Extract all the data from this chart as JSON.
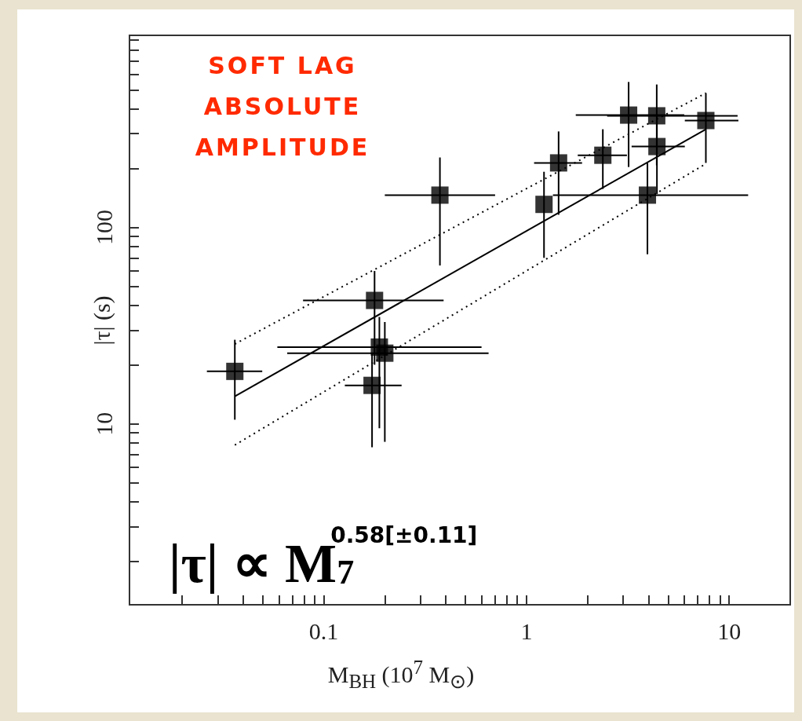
{
  "chart_data": {
    "type": "scatter",
    "xlabel": "M$_{BH}$ (10$^{7}$ M$_{⊙}$)",
    "ylabel": "|τ| (s)",
    "log": "xy",
    "xlim": [
      0.011,
      20
    ],
    "ylim": [
      1.2,
      950
    ],
    "xticks": [
      {
        "value": 0.02,
        "label": null
      },
      {
        "value": 0.03,
        "label": null
      },
      {
        "value": 0.04,
        "label": null
      },
      {
        "value": 0.05,
        "label": null
      },
      {
        "value": 0.06,
        "label": null
      },
      {
        "value": 0.07,
        "label": null
      },
      {
        "value": 0.08,
        "label": null
      },
      {
        "value": 0.09,
        "label": null
      },
      0.1,
      {
        "value": 0.2,
        "label": null
      },
      {
        "value": 0.3,
        "label": null
      },
      {
        "value": 0.4,
        "label": null
      },
      {
        "value": 0.5,
        "label": null
      },
      {
        "value": 0.6,
        "label": null
      },
      {
        "value": 0.7,
        "label": null
      },
      {
        "value": 0.8,
        "label": null
      },
      {
        "value": 0.9,
        "label": null
      },
      1,
      {
        "value": 2,
        "label": null
      },
      {
        "value": 3,
        "label": null
      },
      {
        "value": 4,
        "label": null
      },
      {
        "value": 5,
        "label": null
      },
      {
        "value": 6,
        "label": null
      },
      {
        "value": 7,
        "label": null
      },
      {
        "value": 8,
        "label": null
      },
      {
        "value": 9,
        "label": null
      },
      10
    ],
    "yticks": [
      {
        "value": 2,
        "label": null
      },
      {
        "value": 3,
        "label": null
      },
      {
        "value": 4,
        "label": null
      },
      {
        "value": 5,
        "label": null
      },
      {
        "value": 6,
        "label": null
      },
      {
        "value": 7,
        "label": null
      },
      {
        "value": 8,
        "label": null
      },
      {
        "value": 9,
        "label": null
      },
      10,
      {
        "value": 20,
        "label": null
      },
      {
        "value": 30,
        "label": null
      },
      {
        "value": 40,
        "label": null
      },
      {
        "value": 50,
        "label": null
      },
      {
        "value": 60,
        "label": null
      },
      {
        "value": 70,
        "label": null
      },
      {
        "value": 80,
        "label": null
      },
      {
        "value": 90,
        "label": null
      },
      100,
      {
        "value": 200,
        "label": null
      },
      {
        "value": 300,
        "label": null
      },
      {
        "value": 400,
        "label": null
      },
      {
        "value": 500,
        "label": null
      },
      {
        "value": 600,
        "label": null
      },
      {
        "value": 700,
        "label": null
      },
      {
        "value": 800,
        "label": null
      },
      {
        "value": 900,
        "label": null
      }
    ],
    "annotations": [
      "SOFT LAG ABSOLUTE AMPLITUDE",
      "|τ| ∝ M$_{7}$$^{0.58[±0.11]}$"
    ],
    "series": [
      {
        "type": "scatter",
        "color": "#000000",
        "marker": "square",
        "x": [
          0.0364,
          0.178,
          0.188,
          0.2,
          0.173,
          0.374,
          1.22,
          1.44,
          2.38,
          3.19,
          4.39,
          4.4,
          3.95,
          7.67
        ],
        "values": [
          18.5,
          42.5,
          24.6,
          22.9,
          15.7,
          146,
          131,
          213,
          233,
          373,
          370,
          258,
          146,
          350
        ],
        "errors": [
          [
            10.5,
            26.8
          ],
          [
            20,
            60
          ],
          [
            9.5,
            35
          ],
          [
            8.1,
            33
          ],
          [
            7.6,
            23
          ],
          [
            64,
            227
          ],
          [
            70,
            192
          ],
          [
            116,
            308
          ],
          [
            157,
            316
          ],
          [
            203,
            550
          ],
          [
            207,
            534
          ],
          [
            148,
            370
          ],
          [
            73,
            213
          ],
          [
            213,
            483
          ]
        ],
        "xerrors": [
          [
            0.0265,
            0.0497
          ],
          [
            0.079,
            0.39
          ],
          [
            0.059,
            0.6
          ],
          [
            0.066,
            0.65
          ],
          [
            0.127,
            0.242
          ],
          [
            0.2,
            0.7
          ],
          null,
          [
            1.09,
            1.88
          ],
          [
            1.79,
            3.13
          ],
          [
            1.75,
            6
          ],
          [
            2.5,
            11
          ],
          [
            3.3,
            6.04
          ],
          [
            1.35,
            12.4
          ],
          [
            6.04,
            11.1
          ]
        ]
      },
      {
        "type": "line",
        "color": "#000000",
        "line_style": "solid",
        "marker": "none",
        "x": [
          0.0364,
          7.67
        ],
        "values": [
          13.8,
          316
        ]
      },
      {
        "type": "line",
        "color": "#000000",
        "line_style": "dotted",
        "marker": "none",
        "x": [
          0.0364,
          7.67
        ],
        "values": [
          25.5,
          483
        ]
      },
      {
        "type": "line",
        "color": "#000000",
        "line_style": "dotted",
        "marker": "none",
        "x": [
          0.0364,
          7.67
        ],
        "values": [
          7.8,
          211
        ]
      }
    ]
  }
}
